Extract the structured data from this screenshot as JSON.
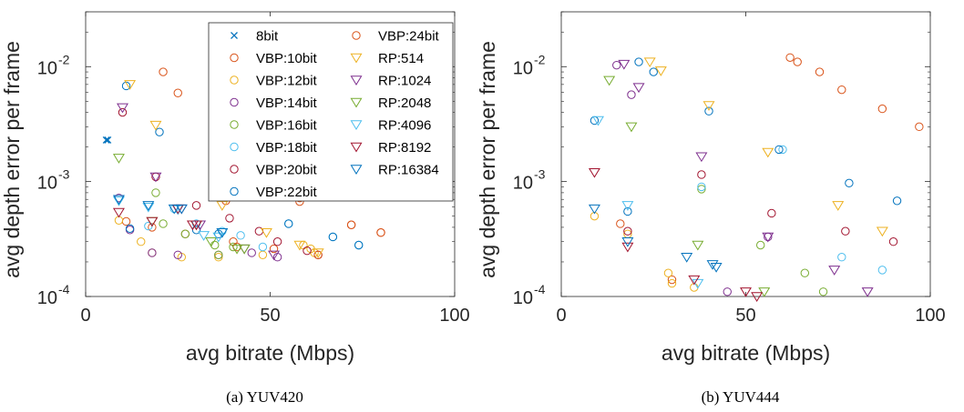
{
  "chart_data": [
    {
      "type": "scatter",
      "caption": "(a) YUV420",
      "xlabel": "avg bitrate (Mbps)",
      "ylabel": "avg depth error per frame",
      "xlim": [
        0,
        100
      ],
      "ylim": [
        0.0001,
        0.03
      ],
      "y_scale": "log",
      "x_ticks": [
        {
          "v": 0,
          "label": "0"
        },
        {
          "v": 50,
          "label": "50"
        },
        {
          "v": 100,
          "label": "100"
        }
      ],
      "y_ticks": [
        {
          "v": 0.0001,
          "base": "10",
          "exp": "-4"
        },
        {
          "v": 0.001,
          "base": "10",
          "exp": "-3"
        },
        {
          "v": 0.01,
          "base": "10",
          "exp": "-2"
        }
      ],
      "grid": false,
      "legend": {
        "placement": "top-right",
        "columns": 2
      },
      "series": [
        {
          "name": "8bit",
          "marker": "x",
          "color": "#0072BD",
          "points": [
            [
              6.0,
              0.0023
            ],
            [
              5.6,
              0.0023
            ]
          ]
        },
        {
          "name": "VBP:10bit",
          "marker": "o",
          "color": "#D95319",
          "points": [
            [
              21,
              0.009
            ],
            [
              25,
              0.0059
            ],
            [
              11,
              0.00045
            ],
            [
              18,
              0.0004
            ],
            [
              27,
              0.00035
            ],
            [
              40,
              0.0003
            ],
            [
              51,
              0.00026
            ],
            [
              58,
              0.00072
            ],
            [
              72,
              0.00042
            ],
            [
              80,
              0.00036
            ]
          ]
        },
        {
          "name": "VBP:12bit",
          "marker": "o",
          "color": "#EDB120",
          "points": [
            [
              9,
              0.00046
            ],
            [
              15,
              0.0003
            ],
            [
              18,
              0.00024
            ],
            [
              26,
              0.00022
            ],
            [
              36,
              0.00022
            ],
            [
              48,
              0.00023
            ],
            [
              59,
              0.00028
            ],
            [
              61,
              0.00026
            ],
            [
              62,
              0.00024
            ]
          ]
        },
        {
          "name": "VBP:14bit",
          "marker": "o",
          "color": "#7E2F8E",
          "points": [
            [
              9,
              0.00072
            ],
            [
              12,
              0.00038
            ],
            [
              18,
              0.00024
            ],
            [
              25,
              0.00023
            ],
            [
              36,
              0.00023
            ],
            [
              45,
              0.00024
            ],
            [
              52,
              0.00022
            ]
          ]
        },
        {
          "name": "VBP:16bit",
          "marker": "o",
          "color": "#77AC30",
          "points": [
            [
              19,
              0.0008
            ],
            [
              21,
              0.00043
            ],
            [
              27,
              0.00035
            ],
            [
              35,
              0.00028
            ],
            [
              36,
              0.00023
            ],
            [
              40,
              0.00027
            ]
          ]
        },
        {
          "name": "VBP:18bit",
          "marker": "o",
          "color": "#4DBEEE",
          "points": [
            [
              17,
              0.00041
            ],
            [
              24,
              0.00058
            ],
            [
              30,
              0.00043
            ],
            [
              37,
              0.00037
            ],
            [
              42,
              0.00034
            ],
            [
              48,
              0.00027
            ],
            [
              55,
              0.00043
            ],
            [
              67,
              0.00033
            ],
            [
              74,
              0.00028
            ]
          ]
        },
        {
          "name": "VBP:20bit",
          "marker": "o",
          "color": "#A2142F",
          "points": [
            [
              10,
              0.004
            ],
            [
              19,
              0.0011
            ],
            [
              30,
              0.00062
            ],
            [
              39,
              0.00048
            ],
            [
              47,
              0.00037
            ],
            [
              52,
              0.0003
            ],
            [
              60,
              0.00025
            ],
            [
              63,
              0.00023
            ]
          ]
        },
        {
          "name": "VBP:22bit",
          "marker": "o",
          "color": "#0072BD",
          "points": [
            [
              11,
              0.0068
            ],
            [
              20,
              0.0027
            ],
            [
              12,
              0.00039
            ],
            [
              30,
              0.00038
            ],
            [
              36,
              0.00035
            ],
            [
              55,
              0.00043
            ],
            [
              67,
              0.00033
            ],
            [
              74,
              0.00028
            ]
          ]
        },
        {
          "name": "VBP:24bit",
          "marker": "o",
          "color": "#D95319",
          "points": [
            [
              38,
              0.00068
            ],
            [
              41,
              0.00027
            ],
            [
              58,
              0.00067
            ],
            [
              63,
              0.00023
            ],
            [
              72,
              0.00042
            ],
            [
              80,
              0.00036
            ]
          ]
        },
        {
          "name": "RP:514",
          "marker": "v",
          "color": "#EDB120",
          "points": [
            [
              12,
              0.007
            ],
            [
              19,
              0.0031
            ],
            [
              37,
              0.00062
            ],
            [
              49,
              0.00036
            ],
            [
              58,
              0.00028
            ],
            [
              63,
              0.00024
            ]
          ]
        },
        {
          "name": "RP:1024",
          "marker": "v",
          "color": "#7E2F8E",
          "points": [
            [
              10,
              0.0044
            ],
            [
              19,
              0.0011
            ],
            [
              26,
              0.00058
            ],
            [
              31,
              0.00042
            ],
            [
              43,
              0.00026
            ],
            [
              51,
              0.00023
            ]
          ]
        },
        {
          "name": "RP:2048",
          "marker": "v",
          "color": "#77AC30",
          "points": [
            [
              9,
              0.0016
            ],
            [
              18,
              0.00045
            ],
            [
              30,
              0.00042
            ],
            [
              34,
              0.0003
            ],
            [
              41,
              0.00026
            ],
            [
              43,
              0.00026
            ]
          ]
        },
        {
          "name": "RP:4096",
          "marker": "v",
          "color": "#4DBEEE",
          "points": [
            [
              9,
              0.00068
            ],
            [
              17,
              0.0006
            ],
            [
              25,
              0.00057
            ],
            [
              32,
              0.00034
            ],
            [
              36,
              0.00033
            ]
          ]
        },
        {
          "name": "RP:8192",
          "marker": "v",
          "color": "#A2142F",
          "points": [
            [
              9,
              0.00054
            ],
            [
              18,
              0.00045
            ],
            [
              25,
              0.00058
            ],
            [
              29,
              0.00042
            ],
            [
              30,
              0.00042
            ]
          ]
        },
        {
          "name": "RP:16384",
          "marker": "v",
          "color": "#0072BD",
          "points": [
            [
              9,
              0.0007
            ],
            [
              17,
              0.00062
            ],
            [
              24,
              0.00058
            ],
            [
              26,
              0.00058
            ],
            [
              37,
              0.00036
            ]
          ]
        }
      ]
    },
    {
      "type": "scatter",
      "caption": "(b) YUV444",
      "xlabel": "avg bitrate (Mbps)",
      "ylabel": "avg depth error per frame",
      "xlim": [
        0,
        100
      ],
      "ylim": [
        0.0001,
        0.03
      ],
      "y_scale": "log",
      "x_ticks": [
        {
          "v": 0,
          "label": "0"
        },
        {
          "v": 50,
          "label": "50"
        },
        {
          "v": 100,
          "label": "100"
        }
      ],
      "y_ticks": [
        {
          "v": 0.0001,
          "base": "10",
          "exp": "-4"
        },
        {
          "v": 0.001,
          "base": "10",
          "exp": "-3"
        },
        {
          "v": 0.01,
          "base": "10",
          "exp": "-2"
        }
      ],
      "grid": false,
      "series": [
        {
          "name": "VBP:10bit",
          "marker": "o",
          "color": "#D95319",
          "points": [
            [
              62,
              0.012
            ],
            [
              64,
              0.011
            ],
            [
              70,
              0.009
            ],
            [
              76,
              0.0063
            ],
            [
              87,
              0.0043
            ],
            [
              97,
              0.003
            ],
            [
              16,
              0.00043
            ],
            [
              30,
              0.00014
            ]
          ]
        },
        {
          "name": "VBP:12bit",
          "marker": "o",
          "color": "#EDB120",
          "points": [
            [
              9,
              0.0005
            ],
            [
              18,
              0.00035
            ],
            [
              29,
              0.00016
            ],
            [
              30,
              0.00013
            ],
            [
              36,
              0.00012
            ]
          ]
        },
        {
          "name": "VBP:14bit",
          "marker": "o",
          "color": "#7E2F8E",
          "points": [
            [
              15,
              0.0103
            ],
            [
              19,
              0.0057
            ],
            [
              45,
              0.00011
            ],
            [
              56,
              0.00033
            ]
          ]
        },
        {
          "name": "VBP:16bit",
          "marker": "o",
          "color": "#77AC30",
          "points": [
            [
              38,
              0.00086
            ],
            [
              54,
              0.00028
            ],
            [
              66,
              0.00016
            ],
            [
              71,
              0.00011
            ]
          ]
        },
        {
          "name": "VBP:18bit",
          "marker": "o",
          "color": "#4DBEEE",
          "points": [
            [
              38,
              0.0009
            ],
            [
              60,
              0.0019
            ],
            [
              76,
              0.00022
            ],
            [
              87,
              0.00017
            ]
          ]
        },
        {
          "name": "VBP:20bit",
          "marker": "o",
          "color": "#A2142F",
          "points": [
            [
              18,
              0.00037
            ],
            [
              38,
              0.00115
            ],
            [
              57,
              0.00053
            ],
            [
              77,
              0.00037
            ],
            [
              90,
              0.0003
            ]
          ]
        },
        {
          "name": "VBP:22bit",
          "marker": "o",
          "color": "#0072BD",
          "points": [
            [
              9,
              0.0034
            ],
            [
              21,
              0.011
            ],
            [
              25,
              0.009
            ],
            [
              40,
              0.0041
            ],
            [
              18,
              0.00055
            ],
            [
              59,
              0.0019
            ],
            [
              78,
              0.00097
            ],
            [
              91,
              0.00068
            ]
          ]
        },
        {
          "name": "RP:514",
          "marker": "v",
          "color": "#EDB120",
          "points": [
            [
              24,
              0.011
            ],
            [
              27,
              0.0092
            ],
            [
              40,
              0.0046
            ],
            [
              56,
              0.0018
            ],
            [
              75,
              0.00062
            ],
            [
              87,
              0.00037
            ]
          ]
        },
        {
          "name": "RP:1024",
          "marker": "v",
          "color": "#7E2F8E",
          "points": [
            [
              17,
              0.0105
            ],
            [
              21,
              0.0066
            ],
            [
              38,
              0.00165
            ],
            [
              56,
              0.00033
            ],
            [
              74,
              0.00017
            ],
            [
              83,
              0.00011
            ]
          ]
        },
        {
          "name": "RP:2048",
          "marker": "v",
          "color": "#77AC30",
          "points": [
            [
              13,
              0.0076
            ],
            [
              19,
              0.003
            ],
            [
              37,
              0.00028
            ],
            [
              55,
              0.00011
            ]
          ]
        },
        {
          "name": "RP:4096",
          "marker": "v",
          "color": "#4DBEEE",
          "points": [
            [
              10,
              0.0034
            ],
            [
              18,
              0.00062
            ],
            [
              37,
              0.00013
            ]
          ]
        },
        {
          "name": "RP:8192",
          "marker": "v",
          "color": "#A2142F",
          "points": [
            [
              9,
              0.0012
            ],
            [
              18,
              0.00027
            ],
            [
              36,
              0.00014
            ],
            [
              50,
              0.00011
            ],
            [
              53,
              0.0001
            ]
          ]
        },
        {
          "name": "RP:16384",
          "marker": "v",
          "color": "#0072BD",
          "points": [
            [
              9,
              0.00058
            ],
            [
              18,
              0.0003
            ],
            [
              34,
              0.00022
            ],
            [
              41,
              0.00019
            ],
            [
              42,
              0.00018
            ]
          ]
        }
      ]
    }
  ]
}
